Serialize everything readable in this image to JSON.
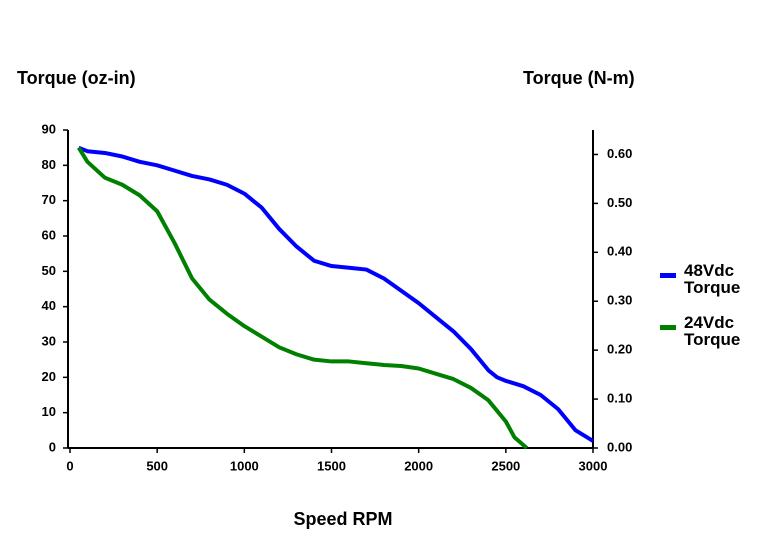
{
  "chart_data": {
    "type": "line",
    "y_label": "Torque (oz-in)",
    "y2_label": "Torque (N-m)",
    "x_label": "Speed RPM",
    "xlim": [
      0,
      3000
    ],
    "xticks": [
      0,
      500,
      1000,
      1500,
      2000,
      2500,
      3000
    ],
    "ylim": [
      0,
      90
    ],
    "yticks": [
      0,
      10,
      20,
      30,
      40,
      50,
      60,
      70,
      80,
      90
    ],
    "y2lim": [
      0,
      0.65
    ],
    "y2ticks": [
      {
        "value": 0,
        "label": "0.00"
      },
      {
        "value": 0.1,
        "label": "0.10"
      },
      {
        "value": 0.2,
        "label": "0.20"
      },
      {
        "value": 0.3,
        "label": "0.30"
      },
      {
        "value": 0.4,
        "label": "0.40"
      },
      {
        "value": 0.5,
        "label": "0.50"
      },
      {
        "value": 0.6,
        "label": "0.60"
      }
    ],
    "series": [
      {
        "name": "48Vdc Torque",
        "color": "#0000ff",
        "x": [
          50,
          100,
          200,
          300,
          400,
          500,
          600,
          700,
          800,
          900,
          1000,
          1100,
          1200,
          1300,
          1400,
          1500,
          1600,
          1700,
          1800,
          1900,
          2000,
          2100,
          2200,
          2300,
          2400,
          2450,
          2500,
          2600,
          2700,
          2800,
          2900,
          3000
        ],
        "values": [
          85,
          84,
          83.5,
          82.5,
          81,
          80,
          78.5,
          77,
          76,
          74.5,
          72,
          68,
          62,
          57,
          53,
          51.5,
          51,
          50.5,
          48,
          44.5,
          41,
          37,
          33,
          28,
          22,
          20,
          19,
          17.5,
          15,
          11,
          5,
          2
        ]
      },
      {
        "name": "24Vdc Torque",
        "color": "#008000",
        "x": [
          50,
          100,
          200,
          300,
          400,
          500,
          600,
          700,
          800,
          900,
          1000,
          1100,
          1200,
          1300,
          1400,
          1500,
          1600,
          1700,
          1800,
          1900,
          2000,
          2100,
          2200,
          2300,
          2400,
          2500,
          2550,
          2620
        ],
        "values": [
          85,
          81,
          76.5,
          74.5,
          71.5,
          67,
          58,
          48,
          42,
          38,
          34.5,
          31.5,
          28.5,
          26.5,
          25,
          24.5,
          24.5,
          24,
          23.5,
          23.2,
          22.5,
          21,
          19.5,
          17,
          13.5,
          7.5,
          3,
          0
        ]
      }
    ]
  }
}
